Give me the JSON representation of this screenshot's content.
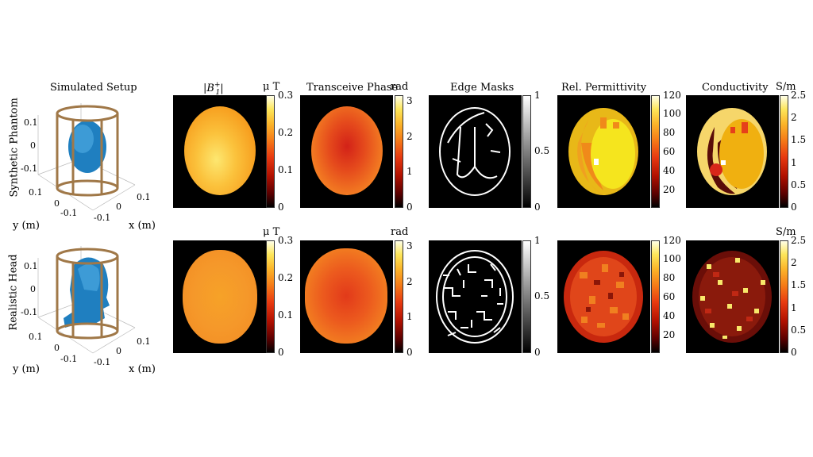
{
  "column_titles": {
    "setup": "Simulated Setup",
    "b1": "|B",
    "b1_sup": "+",
    "b1_sub": "1",
    "b1_close": "|",
    "phase": "Transceive Phase",
    "edge": "Edge Masks",
    "perm": "Rel. Permittivity",
    "cond": "Conductivity"
  },
  "row_labels": {
    "top": "Synthetic Phantom",
    "bottom": "Realistic Head"
  },
  "units": {
    "b1": "μ T",
    "phase": "rad",
    "cond": "S/m"
  },
  "colorbar_ticks": {
    "b1": [
      "0.3",
      "0.2",
      "0.1",
      "0"
    ],
    "phase": [
      "3",
      "2",
      "1",
      "0"
    ],
    "edge": [
      "1",
      "0.5",
      "0"
    ],
    "perm": [
      "120",
      "100",
      "80",
      "60",
      "40",
      "20"
    ],
    "cond": [
      "2.5",
      "2",
      "1.5",
      "1",
      "0.5",
      "0"
    ]
  },
  "axes_3d": {
    "z_ticks": [
      "0.1",
      "0",
      "-0.1"
    ],
    "y_ticks": [
      "0.1",
      "0",
      "-0.1"
    ],
    "x_ticks": [
      "-0.1",
      "0",
      "0.1"
    ],
    "y_label": "y (m)",
    "x_label": "x (m)"
  },
  "colors": {
    "hot_scale": [
      "#000000",
      "#b01000",
      "#f57a18",
      "#fde65a",
      "#ffffe8"
    ],
    "coil": "#a07848",
    "head": "#1f7fc0"
  }
}
